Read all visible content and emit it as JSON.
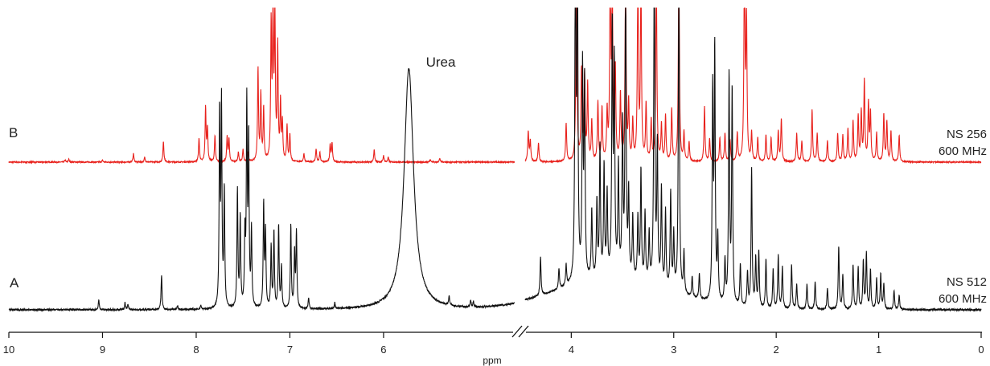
{
  "chart_data": {
    "type": "line",
    "xlabel": "ppm",
    "x_axis": {
      "ticks": [
        10,
        9,
        8,
        7,
        6,
        4,
        3,
        2,
        1,
        0
      ],
      "reversed": true,
      "break": [
        4.65,
        4.45
      ]
    },
    "annotations": [
      {
        "text": "Urea",
        "x": 5.73
      }
    ],
    "colors": {
      "B": "#e8211c",
      "A": "#111111"
    },
    "series": [
      {
        "name": "B",
        "info": [
          "NS 256",
          "600 MHz"
        ],
        "peaks": [
          [
            9.4,
            0.02
          ],
          [
            9.36,
            0.03
          ],
          [
            9.0,
            0.02
          ],
          [
            8.67,
            0.09
          ],
          [
            8.55,
            0.05
          ],
          [
            8.35,
            0.22
          ],
          [
            7.97,
            0.25
          ],
          [
            7.9,
            0.57
          ],
          [
            7.88,
            0.35
          ],
          [
            7.8,
            0.28
          ],
          [
            7.67,
            0.26
          ],
          [
            7.65,
            0.24
          ],
          [
            7.55,
            0.1
          ],
          [
            7.5,
            0.13
          ],
          [
            7.45,
            0.1
          ],
          [
            7.34,
            0.98
          ],
          [
            7.31,
            0.7
          ],
          [
            7.28,
            0.55
          ],
          [
            7.2,
            1.4
          ],
          [
            7.18,
            1.6
          ],
          [
            7.16,
            1.55
          ],
          [
            7.13,
            1.2
          ],
          [
            7.1,
            0.6
          ],
          [
            7.08,
            0.4
          ],
          [
            7.03,
            0.38
          ],
          [
            7.0,
            0.28
          ],
          [
            6.85,
            0.09
          ],
          [
            6.72,
            0.14
          ],
          [
            6.68,
            0.1
          ],
          [
            6.57,
            0.18
          ],
          [
            6.55,
            0.2
          ],
          [
            6.1,
            0.13
          ],
          [
            6.0,
            0.07
          ],
          [
            5.95,
            0.05
          ],
          [
            5.5,
            0.03
          ],
          [
            5.4,
            0.04
          ],
          [
            4.42,
            0.32
          ],
          [
            4.4,
            0.22
          ],
          [
            4.32,
            0.2
          ],
          [
            4.05,
            0.4
          ],
          [
            3.95,
            2.2
          ],
          [
            3.9,
            0.95
          ],
          [
            3.87,
            0.9
          ],
          [
            3.84,
            0.8
          ],
          [
            3.8,
            0.42
          ],
          [
            3.74,
            0.62
          ],
          [
            3.7,
            0.55
          ],
          [
            3.65,
            0.5
          ],
          [
            3.62,
            2.0
          ],
          [
            3.6,
            1.9
          ],
          [
            3.57,
            0.95
          ],
          [
            3.52,
            0.7
          ],
          [
            3.47,
            2.0
          ],
          [
            3.44,
            0.6
          ],
          [
            3.4,
            0.42
          ],
          [
            3.35,
            2.0
          ],
          [
            3.32,
            1.9
          ],
          [
            3.27,
            0.6
          ],
          [
            3.22,
            0.42
          ],
          [
            3.17,
            2.1
          ],
          [
            3.12,
            0.38
          ],
          [
            3.08,
            0.48
          ],
          [
            3.02,
            0.55
          ],
          [
            2.95,
            2.2
          ],
          [
            2.9,
            0.3
          ],
          [
            2.85,
            0.2
          ],
          [
            2.7,
            0.58
          ],
          [
            2.65,
            0.24
          ],
          [
            2.55,
            0.25
          ],
          [
            2.5,
            0.3
          ],
          [
            2.45,
            0.22
          ],
          [
            2.38,
            0.3
          ],
          [
            2.31,
            2.2
          ],
          [
            2.29,
            1.5
          ],
          [
            2.24,
            0.3
          ],
          [
            2.18,
            0.25
          ],
          [
            2.1,
            0.28
          ],
          [
            2.05,
            0.25
          ],
          [
            1.98,
            0.32
          ],
          [
            1.95,
            0.45
          ],
          [
            1.8,
            0.3
          ],
          [
            1.75,
            0.22
          ],
          [
            1.65,
            0.55
          ],
          [
            1.6,
            0.3
          ],
          [
            1.5,
            0.22
          ],
          [
            1.4,
            0.3
          ],
          [
            1.35,
            0.28
          ],
          [
            1.3,
            0.35
          ],
          [
            1.25,
            0.42
          ],
          [
            1.2,
            0.48
          ],
          [
            1.17,
            0.52
          ],
          [
            1.14,
            0.85
          ],
          [
            1.1,
            0.6
          ],
          [
            1.08,
            0.5
          ],
          [
            1.02,
            0.3
          ],
          [
            0.95,
            0.5
          ],
          [
            0.92,
            0.42
          ],
          [
            0.88,
            0.32
          ],
          [
            0.8,
            0.28
          ]
        ]
      },
      {
        "name": "A",
        "info": [
          "NS 512",
          "600 MHz"
        ],
        "peaks": [
          [
            9.04,
            0.07
          ],
          [
            8.76,
            0.05
          ],
          [
            8.73,
            0.04
          ],
          [
            8.37,
            0.25
          ],
          [
            8.2,
            0.03
          ],
          [
            7.95,
            0.03
          ],
          [
            7.75,
            1.4
          ],
          [
            7.73,
            1.45
          ],
          [
            7.7,
            0.85
          ],
          [
            7.56,
            0.85
          ],
          [
            7.53,
            0.65
          ],
          [
            7.48,
            0.5
          ],
          [
            7.46,
            1.45
          ],
          [
            7.44,
            1.2
          ],
          [
            7.41,
            0.55
          ],
          [
            7.28,
            0.75
          ],
          [
            7.26,
            0.55
          ],
          [
            7.2,
            0.45
          ],
          [
            7.17,
            0.55
          ],
          [
            7.12,
            0.6
          ],
          [
            7.09,
            0.3
          ],
          [
            6.99,
            0.6
          ],
          [
            6.95,
            0.4
          ],
          [
            6.93,
            0.55
          ],
          [
            6.8,
            0.08
          ],
          [
            6.52,
            0.04
          ],
          [
            5.3,
            0.07
          ],
          [
            5.07,
            0.05
          ],
          [
            5.04,
            0.04
          ],
          [
            4.3,
            0.28
          ],
          [
            4.12,
            0.15
          ],
          [
            4.05,
            0.15
          ],
          [
            3.96,
            2.5
          ],
          [
            3.94,
            2.5
          ],
          [
            3.89,
            1.5
          ],
          [
            3.87,
            1.4
          ],
          [
            3.8,
            0.5
          ],
          [
            3.75,
            0.55
          ],
          [
            3.72,
            0.95
          ],
          [
            3.68,
            0.8
          ],
          [
            3.65,
            0.6
          ],
          [
            3.6,
            1.8
          ],
          [
            3.58,
            1.5
          ],
          [
            3.54,
            0.8
          ],
          [
            3.5,
            1.1
          ],
          [
            3.47,
            2.2
          ],
          [
            3.44,
            0.6
          ],
          [
            3.4,
            0.45
          ],
          [
            3.35,
            0.45
          ],
          [
            3.32,
            0.8
          ],
          [
            3.28,
            0.5
          ],
          [
            3.24,
            0.35
          ],
          [
            3.19,
            2.5
          ],
          [
            3.16,
            1.0
          ],
          [
            3.12,
            0.7
          ],
          [
            3.08,
            0.55
          ],
          [
            3.03,
            0.7
          ],
          [
            3.0,
            0.4
          ],
          [
            2.95,
            2.5
          ],
          [
            2.9,
            0.3
          ],
          [
            2.82,
            0.15
          ],
          [
            2.75,
            0.18
          ],
          [
            2.62,
            1.5
          ],
          [
            2.6,
            1.8
          ],
          [
            2.57,
            0.45
          ],
          [
            2.5,
            0.3
          ],
          [
            2.46,
            1.65
          ],
          [
            2.43,
            1.55
          ],
          [
            2.35,
            0.3
          ],
          [
            2.28,
            0.25
          ],
          [
            2.24,
            1.0
          ],
          [
            2.2,
            0.35
          ],
          [
            2.17,
            0.4
          ],
          [
            2.1,
            0.35
          ],
          [
            2.03,
            0.28
          ],
          [
            1.98,
            0.38
          ],
          [
            1.94,
            0.3
          ],
          [
            1.85,
            0.32
          ],
          [
            1.8,
            0.18
          ],
          [
            1.7,
            0.18
          ],
          [
            1.62,
            0.2
          ],
          [
            1.5,
            0.15
          ],
          [
            1.39,
            0.45
          ],
          [
            1.35,
            0.25
          ],
          [
            1.25,
            0.32
          ],
          [
            1.2,
            0.3
          ],
          [
            1.15,
            0.35
          ],
          [
            1.12,
            0.4
          ],
          [
            1.08,
            0.28
          ],
          [
            1.02,
            0.22
          ],
          [
            0.98,
            0.25
          ],
          [
            0.95,
            0.18
          ],
          [
            0.85,
            0.14
          ],
          [
            0.8,
            0.1
          ]
        ],
        "broad_peaks": [
          {
            "center": 5.73,
            "height": 1.75,
            "width": 0.06,
            "shape": "lorentzian"
          },
          {
            "center": 3.6,
            "height": 0.22,
            "width": 0.55,
            "shape": "gaussian"
          }
        ]
      }
    ]
  }
}
